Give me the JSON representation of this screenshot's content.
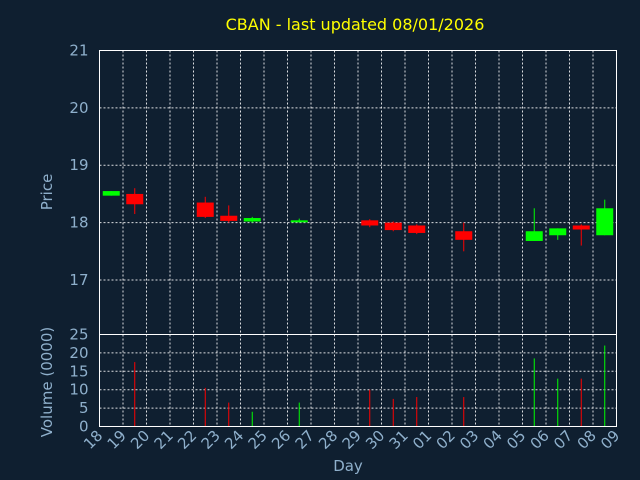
{
  "colors": {
    "background": "#0f1f30",
    "up": "#00ff00",
    "down": "#ff0000",
    "title": "#ffff00",
    "text": "#8fb0cc",
    "grid": "#ffffff"
  },
  "chart_data": {
    "type": "candlestick",
    "title": "CBAN - last updated 08/01/2026",
    "xlabel": "Day",
    "price_ylabel": "Price",
    "volume_ylabel": "Volume (0000)",
    "x_ticks": [
      "18",
      "19",
      "20",
      "21",
      "22",
      "23",
      "24",
      "25",
      "26",
      "27",
      "28",
      "29",
      "30",
      "31",
      "01",
      "02",
      "03",
      "04",
      "05",
      "06",
      "07",
      "08",
      "09"
    ],
    "price_ticks": [
      17,
      18,
      19,
      20,
      21
    ],
    "price_ylim": [
      16.05,
      21
    ],
    "volume_ticks": [
      0,
      5,
      10,
      15,
      20,
      25
    ],
    "volume_ylim": [
      0,
      25
    ],
    "grid": true,
    "candles": [
      {
        "day": "18",
        "open": 18.47,
        "high": 18.55,
        "low": 18.47,
        "close": 18.55,
        "volume": 0
      },
      {
        "day": "19",
        "open": 18.5,
        "high": 18.6,
        "low": 18.15,
        "close": 18.32,
        "volume": 17.5
      },
      {
        "day": "22",
        "open": 18.35,
        "high": 18.45,
        "low": 18.08,
        "close": 18.1,
        "volume": 10.5
      },
      {
        "day": "23",
        "open": 18.12,
        "high": 18.3,
        "low": 18.0,
        "close": 18.03,
        "volume": 6.5
      },
      {
        "day": "24",
        "open": 18.02,
        "high": 18.1,
        "low": 18.0,
        "close": 18.08,
        "volume": 4
      },
      {
        "day": "26",
        "open": 18.01,
        "high": 18.07,
        "low": 18.0,
        "close": 18.04,
        "volume": 6.5
      },
      {
        "day": "29",
        "open": 18.04,
        "high": 18.06,
        "low": 17.92,
        "close": 17.95,
        "volume": 10
      },
      {
        "day": "30",
        "open": 18.0,
        "high": 18.02,
        "low": 17.85,
        "close": 17.87,
        "volume": 7.5
      },
      {
        "day": "31",
        "open": 17.95,
        "high": 17.97,
        "low": 17.8,
        "close": 17.82,
        "volume": 8
      },
      {
        "day": "02",
        "open": 17.85,
        "high": 18.0,
        "low": 17.5,
        "close": 17.7,
        "volume": 8
      },
      {
        "day": "05",
        "open": 17.68,
        "high": 18.25,
        "low": 17.68,
        "close": 17.85,
        "volume": 18.5
      },
      {
        "day": "06",
        "open": 17.78,
        "high": 17.9,
        "low": 17.7,
        "close": 17.9,
        "volume": 13
      },
      {
        "day": "07",
        "open": 17.95,
        "high": 17.97,
        "low": 17.6,
        "close": 17.88,
        "volume": 13
      },
      {
        "day": "08",
        "open": 17.78,
        "high": 18.4,
        "low": 17.78,
        "close": 18.25,
        "volume": 22
      }
    ]
  }
}
